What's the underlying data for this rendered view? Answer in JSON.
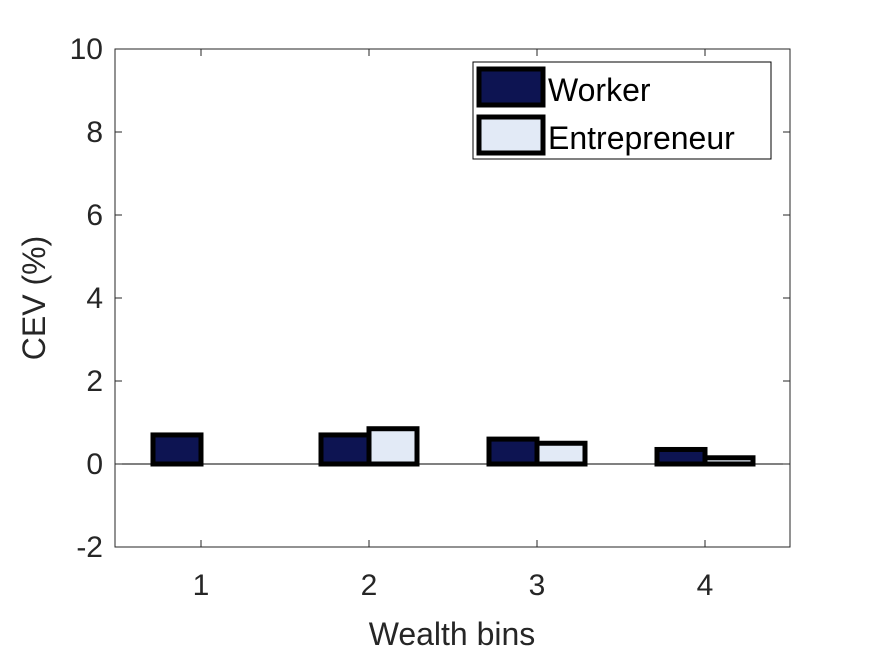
{
  "chart_data": {
    "type": "bar",
    "title": "",
    "xlabel": "Wealth bins",
    "ylabel": "CEV (%)",
    "categories": [
      "1",
      "2",
      "3",
      "4"
    ],
    "ylim": [
      -2,
      10
    ],
    "yticks": [
      "-2",
      "0",
      "2",
      "4",
      "6",
      "8",
      "10"
    ],
    "grid": false,
    "legend_position": "top-right",
    "series": [
      {
        "name": "Worker",
        "values": [
          0.7,
          0.7,
          0.6,
          0.35
        ],
        "color": "#0d1452"
      },
      {
        "name": "Entrepreneur",
        "values": [
          0.0,
          0.85,
          0.5,
          0.15
        ],
        "color": "#e2eaf6"
      }
    ]
  }
}
